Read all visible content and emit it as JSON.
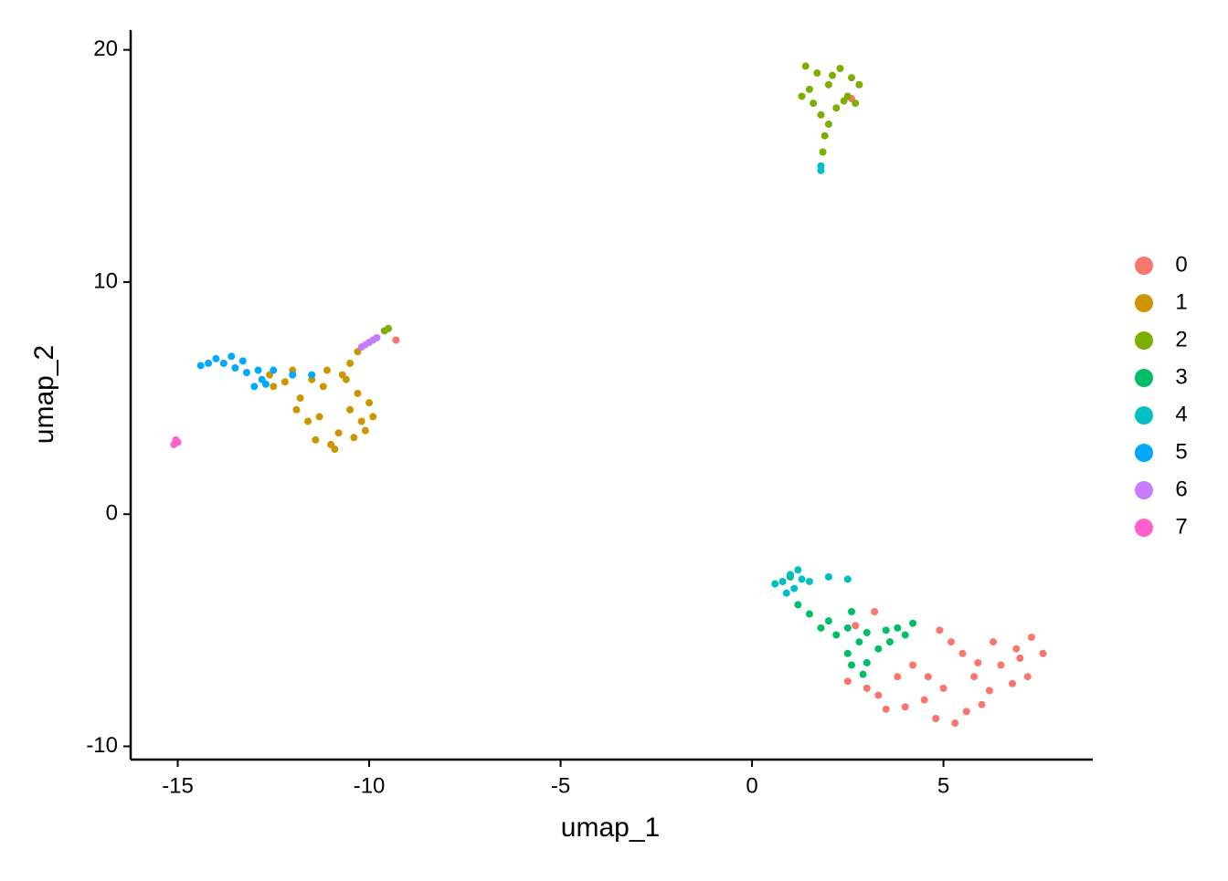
{
  "chart_data": {
    "type": "scatter",
    "xlabel": "umap_1",
    "ylabel": "umap_2",
    "xlim": [
      -16.23,
      8.9
    ],
    "ylim": [
      -10.57,
      20.85
    ],
    "xticks": [
      -15,
      -10,
      -5,
      0,
      5
    ],
    "yticks": [
      -10,
      0,
      10,
      20
    ],
    "grid": false,
    "legend": "right",
    "series": [
      {
        "name": "0",
        "color": "#F8766D",
        "x": [
          5.8,
          5.0,
          6.5,
          4.5,
          6.0,
          5.5,
          7.0,
          7.6,
          4.0,
          3.3,
          3.0,
          5.3,
          4.8,
          6.3,
          7.3,
          6.8,
          5.2,
          4.2,
          3.8,
          6.2,
          5.6,
          4.6,
          5.9,
          3.5,
          2.7,
          3.2,
          4.9,
          6.9,
          7.2,
          2.5,
          -9.3,
          2.6
        ],
        "values": [
          -7.0,
          -7.5,
          -6.5,
          -8.0,
          -8.2,
          -6.0,
          -6.2,
          -6.0,
          -8.3,
          -7.8,
          -7.5,
          -9.0,
          -8.8,
          -5.5,
          -5.3,
          -7.3,
          -5.5,
          -6.5,
          -7.0,
          -7.6,
          -8.5,
          -7.0,
          -6.4,
          -8.4,
          -4.8,
          -4.2,
          -5.0,
          -5.8,
          -7.0,
          -7.2,
          7.5,
          17.9
        ]
      },
      {
        "name": "1",
        "color": "#CD9600",
        "x": [
          -11.2,
          -10.5,
          -10.2,
          -10.8,
          -11.0,
          -10.4,
          -11.5,
          -12.0,
          -11.8,
          -10.0,
          -9.9,
          -10.6,
          -11.3,
          -11.6,
          -10.9,
          -11.4,
          -12.2,
          -10.3,
          -10.7,
          -11.9,
          -10.1,
          -11.1,
          -10.5,
          -10.3,
          -12.5,
          -12.6,
          -15.0
        ],
        "values": [
          5.5,
          4.5,
          4.0,
          3.5,
          3.0,
          3.3,
          5.8,
          6.2,
          5.0,
          4.8,
          4.2,
          5.8,
          4.2,
          4.0,
          2.8,
          3.2,
          5.7,
          5.2,
          6.0,
          4.5,
          3.6,
          6.2,
          6.5,
          7.0,
          5.5,
          6.0,
          3.1
        ]
      },
      {
        "name": "2",
        "color": "#7CAE00",
        "x": [
          2.0,
          1.5,
          2.5,
          2.8,
          1.7,
          2.3,
          1.4,
          2.2,
          1.8,
          2.0,
          1.9,
          1.85,
          2.6,
          1.3,
          2.4,
          1.6,
          2.1,
          2.7,
          -9.6,
          -9.5
        ],
        "values": [
          18.5,
          18.3,
          18.0,
          18.5,
          19.0,
          19.2,
          19.3,
          17.5,
          17.2,
          16.8,
          16.3,
          15.6,
          18.8,
          18.0,
          17.8,
          17.7,
          18.9,
          17.7,
          7.9,
          8.0
        ]
      },
      {
        "name": "3",
        "color": "#00BE67",
        "x": [
          1.5,
          2.0,
          2.5,
          3.0,
          3.5,
          3.8,
          2.2,
          1.8,
          2.8,
          2.5,
          2.6,
          3.0,
          2.9,
          3.3,
          1.2,
          2.6,
          3.6,
          4.0,
          1.0,
          4.2
        ],
        "values": [
          -4.3,
          -4.6,
          -4.9,
          -5.1,
          -5.0,
          -4.9,
          -5.2,
          -4.9,
          -5.5,
          -6.0,
          -6.5,
          -6.4,
          -6.9,
          -5.8,
          -3.9,
          -4.2,
          -5.5,
          -5.2,
          -2.7,
          -4.7
        ]
      },
      {
        "name": "4",
        "color": "#00BFC4",
        "x": [
          0.8,
          1.0,
          1.3,
          1.1,
          0.6,
          1.5,
          1.2,
          0.9,
          2.0,
          2.5,
          1.8,
          1.8
        ],
        "values": [
          -2.9,
          -2.6,
          -2.8,
          -3.2,
          -3.0,
          -2.9,
          -2.4,
          -3.4,
          -2.7,
          -2.8,
          15.0,
          14.8
        ]
      },
      {
        "name": "5",
        "color": "#00A9FF",
        "x": [
          -14.2,
          -13.8,
          -13.5,
          -13.2,
          -12.8,
          -13.0,
          -12.7,
          -14.0,
          -13.6,
          -13.3,
          -12.9,
          -14.4,
          -12.5,
          -12.0,
          -11.5
        ],
        "values": [
          6.5,
          6.5,
          6.3,
          6.1,
          5.8,
          5.5,
          5.6,
          6.7,
          6.8,
          6.6,
          6.2,
          6.4,
          6.2,
          6.0,
          6.0
        ]
      },
      {
        "name": "6",
        "color": "#C77CFF",
        "x": [
          -10.2,
          -10.0,
          -9.8,
          -9.9,
          -10.1
        ],
        "values": [
          7.2,
          7.4,
          7.6,
          7.5,
          7.3
        ]
      },
      {
        "name": "7",
        "color": "#FF61CC",
        "x": [
          -15.1,
          -15.0,
          -15.05
        ],
        "values": [
          3.0,
          3.1,
          3.2
        ]
      }
    ]
  }
}
